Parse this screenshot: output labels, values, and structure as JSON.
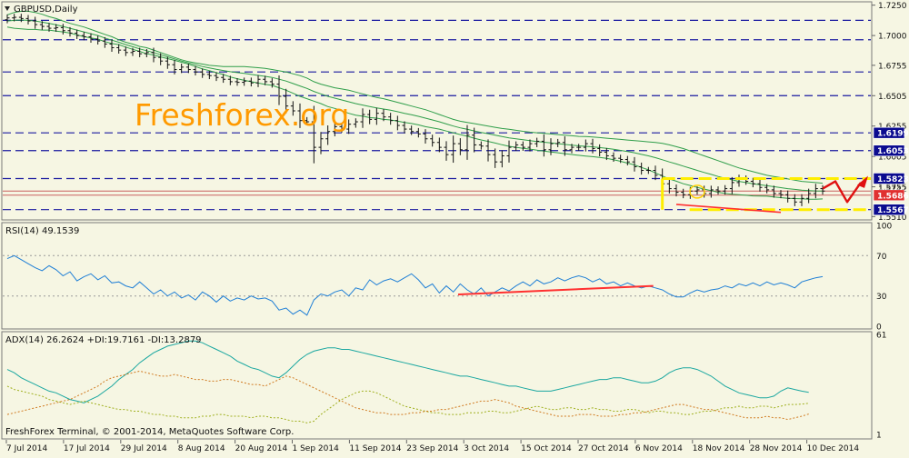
{
  "colors": {
    "background": "#f6f6e3",
    "grid_dash": "#1a1aa0",
    "band": "#2f9e4a",
    "rsi": "#1f7fd6",
    "adx": "#1aa7a0",
    "di_plus": "#a0b020",
    "di_minus": "#d07a20",
    "trend": "#ff3030",
    "channel": "#ffee00",
    "bar": "#111111",
    "watermark": "#ff9a00"
  },
  "header": {
    "symbol_label": "GBPUSD,Daily",
    "menu_icon": "triangle-down-icon"
  },
  "watermark": "Freshforex.org",
  "footer_text": "FreshForex Terminal, © 2001-2014, MetaQuotes Software Corp.",
  "chart_data": [
    {
      "type": "candlestick",
      "title": "GBPUSD,Daily",
      "ylim": [
        1.5505,
        1.7255
      ],
      "y_ticks": [
        "1.7250",
        "1.7000",
        "1.6755",
        "1.6505",
        "1.6255",
        "1.6005",
        "1.5755",
        "1.5510"
      ],
      "price_labels": [
        {
          "text": "1.6199",
          "value": 1.6199,
          "style": "box"
        },
        {
          "text": "1.6053",
          "value": 1.6053,
          "style": "box"
        },
        {
          "text": "1.5823",
          "value": 1.5823,
          "style": "box"
        },
        {
          "text": "1.5742",
          "value": 1.5742,
          "style": "plain"
        },
        {
          "text": "1.5686",
          "value": 1.5686,
          "style": "red"
        },
        {
          "text": "1.5567",
          "value": 1.5567,
          "style": "box"
        }
      ],
      "horizontal_levels": [
        1.7125,
        1.6965,
        1.67,
        1.6505,
        1.6199,
        1.6053,
        1.5823,
        1.5567
      ],
      "current_price_lines": [
        1.572,
        1.5686
      ],
      "x_labels": [
        "7 Jul 2014",
        "17 Jul 2014",
        "29 Jul 2014",
        "8 Aug 2014",
        "20 Aug 2014",
        "1 Sep 2014",
        "11 Sep 2014",
        "23 Sep 2014",
        "3 Oct 2014",
        "15 Oct 2014",
        "27 Oct 2014",
        "6 Nov 2014",
        "18 Nov 2014",
        "28 Nov 2014",
        "10 Dec 2014"
      ],
      "close": [
        1.7145,
        1.715,
        1.714,
        1.712,
        1.709,
        1.7075,
        1.706,
        1.7065,
        1.704,
        1.702,
        1.7,
        1.699,
        1.697,
        1.6955,
        1.693,
        1.69,
        1.688,
        1.686,
        1.687,
        1.685,
        1.686,
        1.682,
        1.679,
        1.676,
        1.672,
        1.674,
        1.672,
        1.67,
        1.668,
        1.667,
        1.6655,
        1.664,
        1.662,
        1.6615,
        1.6625,
        1.661,
        1.664,
        1.662,
        1.66,
        1.65,
        1.642,
        1.638,
        1.63,
        1.629,
        1.608,
        1.615,
        1.621,
        1.625,
        1.623,
        1.627,
        1.629,
        1.635,
        1.631,
        1.636,
        1.633,
        1.63,
        1.626,
        1.623,
        1.621,
        1.619,
        1.615,
        1.612,
        1.608,
        1.602,
        1.611,
        1.606,
        1.618,
        1.61,
        1.609,
        1.602,
        1.596,
        1.601,
        1.608,
        1.61,
        1.608,
        1.611,
        1.613,
        1.606,
        1.611,
        1.612,
        1.606,
        1.608,
        1.608,
        1.611,
        1.607,
        1.604,
        1.601,
        1.599,
        1.598,
        1.596,
        1.592,
        1.589,
        1.589,
        1.585,
        1.578,
        1.574,
        1.571,
        1.569,
        1.572,
        1.573,
        1.57,
        1.573,
        1.572,
        1.574,
        1.579,
        1.582,
        1.58,
        1.578,
        1.575,
        1.573,
        1.57,
        1.569,
        1.566,
        1.563,
        1.566,
        1.57,
        1.574,
        1.572
      ],
      "open": [
        1.713,
        1.7145,
        1.715,
        1.714,
        1.712,
        1.709,
        1.7075,
        1.706,
        1.7065,
        1.704,
        1.702,
        1.7,
        1.699,
        1.697,
        1.6955,
        1.693,
        1.69,
        1.688,
        1.686,
        1.687,
        1.685,
        1.686,
        1.682,
        1.679,
        1.676,
        1.672,
        1.674,
        1.672,
        1.67,
        1.668,
        1.667,
        1.6655,
        1.664,
        1.662,
        1.6615,
        1.6625,
        1.661,
        1.664,
        1.662,
        1.66,
        1.65,
        1.642,
        1.638,
        1.63,
        1.629,
        1.608,
        1.615,
        1.621,
        1.625,
        1.623,
        1.627,
        1.629,
        1.635,
        1.631,
        1.636,
        1.633,
        1.63,
        1.626,
        1.623,
        1.621,
        1.619,
        1.615,
        1.612,
        1.608,
        1.602,
        1.611,
        1.606,
        1.618,
        1.61,
        1.609,
        1.602,
        1.596,
        1.601,
        1.608,
        1.61,
        1.608,
        1.611,
        1.613,
        1.606,
        1.611,
        1.612,
        1.606,
        1.608,
        1.608,
        1.611,
        1.607,
        1.604,
        1.601,
        1.599,
        1.598,
        1.596,
        1.592,
        1.589,
        1.589,
        1.585,
        1.578,
        1.574,
        1.571,
        1.569,
        1.572,
        1.573,
        1.57,
        1.573,
        1.572,
        1.574,
        1.579,
        1.582,
        1.58,
        1.578,
        1.575,
        1.573,
        1.57,
        1.569,
        1.566,
        1.563,
        1.566,
        1.57,
        1.574
      ],
      "bollinger_upper": [
        1.717,
        1.719,
        1.72,
        1.72,
        1.719,
        1.7175,
        1.7155,
        1.714,
        1.712,
        1.71,
        1.7085,
        1.707,
        1.705,
        1.703,
        1.701,
        1.699,
        1.6965,
        1.6945,
        1.693,
        1.691,
        1.69,
        1.688,
        1.686,
        1.684,
        1.682,
        1.68,
        1.6785,
        1.6775,
        1.6765,
        1.6755,
        1.675,
        1.6745,
        1.6745,
        1.6745,
        1.6745,
        1.674,
        1.6735,
        1.673,
        1.672,
        1.671,
        1.67,
        1.6685,
        1.667,
        1.665,
        1.662,
        1.66,
        1.6585,
        1.657,
        1.656,
        1.655,
        1.6535,
        1.652,
        1.6505,
        1.649,
        1.648,
        1.6465,
        1.645,
        1.6435,
        1.642,
        1.6405,
        1.639,
        1.637,
        1.635,
        1.633,
        1.631,
        1.6295,
        1.6285,
        1.6275,
        1.6265,
        1.6255,
        1.6245,
        1.6235,
        1.6228,
        1.622,
        1.6212,
        1.6205,
        1.62,
        1.6195,
        1.619,
        1.6185,
        1.618,
        1.6175,
        1.617,
        1.6168,
        1.6165,
        1.616,
        1.6155,
        1.615,
        1.6145,
        1.614,
        1.6135,
        1.613,
        1.6125,
        1.612,
        1.6112,
        1.61,
        1.6085,
        1.607,
        1.605,
        1.603,
        1.601,
        1.599,
        1.597,
        1.595,
        1.593,
        1.591,
        1.5895,
        1.588,
        1.5865,
        1.585,
        1.584,
        1.583,
        1.582,
        1.581,
        1.58,
        1.5795,
        1.579,
        1.5785
      ],
      "bollinger_middle": [
        1.712,
        1.7125,
        1.7128,
        1.7125,
        1.712,
        1.711,
        1.71,
        1.7088,
        1.7075,
        1.706,
        1.7045,
        1.703,
        1.7015,
        1.7,
        1.698,
        1.6962,
        1.6945,
        1.6925,
        1.6908,
        1.689,
        1.6875,
        1.686,
        1.6842,
        1.6825,
        1.6808,
        1.679,
        1.6775,
        1.676,
        1.6745,
        1.6733,
        1.6722,
        1.6712,
        1.6702,
        1.6695,
        1.6688,
        1.668,
        1.6672,
        1.6664,
        1.6655,
        1.664,
        1.6625,
        1.6605,
        1.6585,
        1.6565,
        1.654,
        1.652,
        1.65,
        1.6485,
        1.647,
        1.6455,
        1.644,
        1.6428,
        1.6415,
        1.6405,
        1.6395,
        1.6385,
        1.6373,
        1.636,
        1.6348,
        1.6335,
        1.632,
        1.6305,
        1.629,
        1.6272,
        1.6255,
        1.624,
        1.6228,
        1.6215,
        1.6203,
        1.6192,
        1.618,
        1.6168,
        1.6158,
        1.615,
        1.6142,
        1.6135,
        1.6128,
        1.6122,
        1.6116,
        1.611,
        1.6104,
        1.6098,
        1.6092,
        1.6088,
        1.6084,
        1.6078,
        1.6072,
        1.6064,
        1.6055,
        1.6045,
        1.6035,
        1.6022,
        1.601,
        1.5995,
        1.5978,
        1.596,
        1.5943,
        1.5925,
        1.5908,
        1.589,
        1.5873,
        1.5857,
        1.584,
        1.5825,
        1.5812,
        1.58,
        1.579,
        1.578,
        1.5772,
        1.5764,
        1.5756,
        1.5748,
        1.574,
        1.5734,
        1.5728,
        1.5724,
        1.5721,
        1.572
      ],
      "bollinger_lower": [
        1.707,
        1.706,
        1.7055,
        1.705,
        1.705,
        1.7045,
        1.7045,
        1.7036,
        1.703,
        1.702,
        1.7005,
        1.699,
        1.698,
        1.697,
        1.695,
        1.6934,
        1.6925,
        1.6905,
        1.6886,
        1.687,
        1.685,
        1.684,
        1.6824,
        1.681,
        1.6796,
        1.678,
        1.6765,
        1.6745,
        1.6725,
        1.6711,
        1.6694,
        1.6679,
        1.6659,
        1.6645,
        1.6631,
        1.662,
        1.6609,
        1.6598,
        1.659,
        1.657,
        1.655,
        1.6525,
        1.65,
        1.648,
        1.646,
        1.644,
        1.6415,
        1.64,
        1.638,
        1.636,
        1.6345,
        1.6336,
        1.6325,
        1.632,
        1.631,
        1.6305,
        1.6296,
        1.6285,
        1.6276,
        1.6265,
        1.625,
        1.624,
        1.623,
        1.6214,
        1.62,
        1.6185,
        1.6171,
        1.6155,
        1.6141,
        1.6129,
        1.6115,
        1.6101,
        1.6088,
        1.608,
        1.6072,
        1.6065,
        1.6056,
        1.6049,
        1.6042,
        1.6035,
        1.6028,
        1.6021,
        1.6014,
        1.6008,
        1.6003,
        1.5996,
        1.5989,
        1.5978,
        1.5965,
        1.595,
        1.5935,
        1.5914,
        1.5895,
        1.587,
        1.5844,
        1.582,
        1.5801,
        1.578,
        1.5766,
        1.575,
        1.5736,
        1.5724,
        1.571,
        1.57,
        1.5694,
        1.569,
        1.5685,
        1.568,
        1.5679,
        1.5678,
        1.5672,
        1.5666,
        1.566,
        1.5658,
        1.5656,
        1.5653,
        1.5652,
        1.5655
      ]
    },
    {
      "type": "line",
      "title": "RSI(14) 49.1539",
      "ylim": [
        0,
        100
      ],
      "y_ticks": [
        "100",
        "70",
        "30",
        "0"
      ],
      "levels": [
        70,
        30
      ],
      "series": [
        {
          "name": "RSI(14)",
          "values": [
            67,
            70,
            66,
            62,
            58,
            55,
            60,
            56,
            50,
            54,
            45,
            49,
            52,
            46,
            50,
            43,
            44,
            40,
            38,
            44,
            38,
            32,
            36,
            30,
            34,
            28,
            31,
            26,
            34,
            30,
            24,
            30,
            25,
            28,
            26,
            30,
            27,
            28,
            25,
            16,
            18,
            12,
            16,
            11,
            26,
            32,
            30,
            34,
            36,
            30,
            38,
            36,
            46,
            41,
            45,
            47,
            44,
            48,
            52,
            46,
            38,
            42,
            33,
            40,
            34,
            42,
            36,
            32,
            38,
            30,
            34,
            38,
            35,
            40,
            44,
            40,
            46,
            42,
            44,
            48,
            45,
            48,
            50,
            48,
            44,
            47,
            42,
            44,
            40,
            43,
            40,
            38,
            40,
            38,
            36,
            32,
            29,
            29,
            33,
            36,
            34,
            36,
            37,
            40,
            38,
            42,
            40,
            43,
            40,
            44,
            41,
            43,
            41,
            38,
            44,
            46,
            48,
            49.15
          ]
        }
      ],
      "trendline": {
        "x": [
          60,
          88
        ],
        "y": [
          31.5,
          40
        ]
      }
    },
    {
      "type": "line",
      "title": "ADX(14) 26.2624 +DI:19.7161 -DI:13.2879",
      "ylim": [
        0,
        61
      ],
      "y_ticks": [
        "61",
        "1"
      ],
      "series": [
        {
          "name": "ADX(14)",
          "values": [
            40,
            38,
            35,
            33,
            31,
            29,
            27,
            26,
            24,
            22,
            21,
            20,
            22,
            24,
            27,
            30,
            34,
            37,
            40,
            44,
            47,
            50,
            52,
            54,
            55,
            56,
            57,
            57,
            56,
            54,
            52,
            50,
            48,
            45,
            43,
            41,
            40,
            38,
            36,
            35,
            38,
            42,
            46,
            49,
            51,
            52,
            53,
            53,
            52,
            52,
            51,
            50,
            49,
            48,
            47,
            46,
            45,
            44,
            43,
            42,
            41,
            40,
            39,
            38,
            37,
            36,
            36,
            35,
            34,
            33,
            32,
            31,
            30,
            30,
            29,
            28,
            27,
            27,
            27,
            28,
            29,
            30,
            31,
            32,
            33,
            34,
            34,
            35,
            35,
            34,
            33,
            32,
            32,
            33,
            35,
            38,
            40,
            41,
            41,
            40,
            38,
            36,
            33,
            30,
            28,
            26,
            25,
            24,
            23,
            23,
            24,
            27,
            29,
            28,
            27,
            26.26
          ]
        },
        {
          "name": "+DI",
          "values": [
            30,
            28,
            27,
            26,
            25,
            24,
            22,
            21,
            20,
            19,
            20,
            21,
            20,
            19,
            18,
            17,
            16,
            16,
            15,
            15,
            14,
            13,
            13,
            12,
            12,
            11,
            11,
            11,
            12,
            12,
            13,
            13,
            12,
            12,
            12,
            11,
            12,
            12,
            11,
            11,
            10,
            9,
            9,
            8,
            9,
            13,
            16,
            19,
            22,
            24,
            26,
            27,
            27,
            26,
            24,
            22,
            20,
            18,
            17,
            16,
            15,
            14,
            14,
            13,
            13,
            13,
            14,
            14,
            14,
            15,
            15,
            14,
            14,
            15,
            16,
            17,
            18,
            17,
            16,
            16,
            17,
            17,
            16,
            16,
            17,
            16,
            16,
            15,
            15,
            16,
            16,
            15,
            14,
            15,
            15,
            14,
            14,
            13,
            13,
            14,
            15,
            15,
            16,
            17,
            17,
            18,
            17,
            17,
            18,
            18,
            17,
            18,
            19,
            19,
            19.2,
            19.72
          ]
        },
        {
          "name": "-DI",
          "values": [
            13,
            14,
            15,
            16,
            17,
            18,
            19,
            20,
            21,
            22,
            24,
            26,
            28,
            30,
            33,
            35,
            36,
            37,
            38,
            39,
            38,
            37,
            36,
            36,
            37,
            36,
            35,
            34,
            34,
            33,
            33,
            34,
            34,
            33,
            32,
            31,
            31,
            30,
            32,
            34,
            36,
            35,
            33,
            31,
            29,
            27,
            25,
            23,
            21,
            19,
            17,
            16,
            15,
            14,
            14,
            13,
            13,
            13,
            14,
            14,
            15,
            15,
            16,
            16,
            17,
            18,
            19,
            20,
            21,
            21,
            22,
            21,
            20,
            18,
            17,
            16,
            15,
            14,
            13,
            12,
            12,
            12,
            13,
            13,
            13,
            12,
            12,
            12,
            13,
            13,
            14,
            14,
            15,
            16,
            17,
            18,
            19,
            19,
            18,
            17,
            16,
            16,
            15,
            14,
            13,
            12,
            11,
            11,
            11,
            12,
            11,
            11,
            10,
            11,
            12,
            13.29
          ]
        }
      ]
    }
  ]
}
